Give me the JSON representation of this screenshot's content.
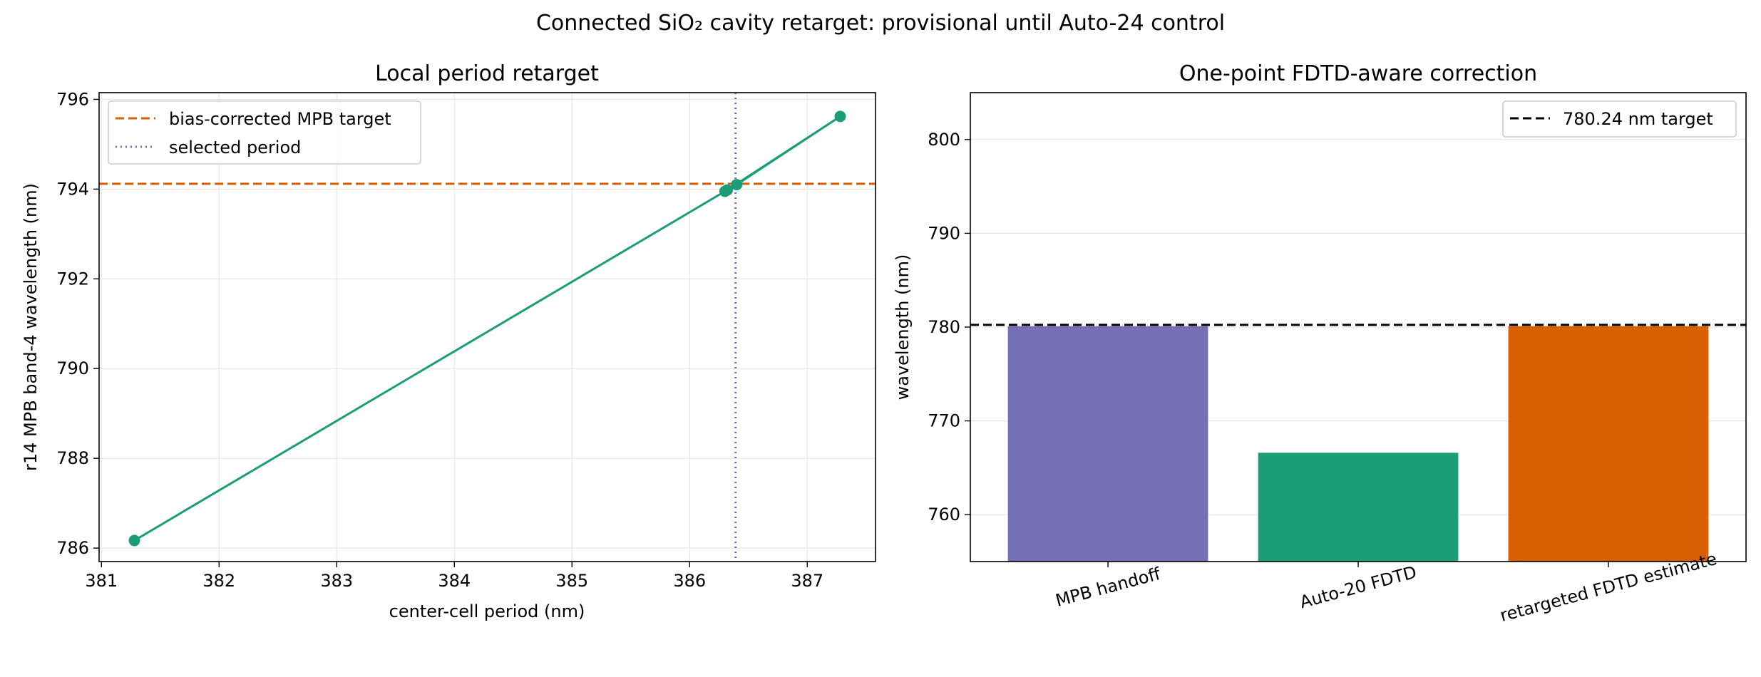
{
  "figure_title": "Connected SiO₂ cavity retarget: provisional until Auto-24 control",
  "colors": {
    "green": "#1b9e77",
    "orange": "#d95f02",
    "purple": "#7570b3",
    "black": "#000000",
    "grid": "#e6e6e6"
  },
  "chart_data": [
    {
      "type": "line",
      "title": "Local period retarget",
      "xlabel": "center-cell period (nm)",
      "ylabel": "r14 MPB band-4 wavelength (nm)",
      "xlim": [
        380.98,
        387.58
      ],
      "ylim": [
        785.7,
        796.15
      ],
      "xticks": [
        381,
        382,
        383,
        384,
        385,
        386,
        387
      ],
      "yticks": [
        786,
        788,
        790,
        792,
        794,
        796
      ],
      "grid": true,
      "legend_position": "upper-left",
      "series": [
        {
          "kind": "line-markers",
          "color": "#1b9e77",
          "x": [
            381.28,
            386.3,
            386.4,
            387.28,
            386.32
          ],
          "y": [
            786.17,
            793.95,
            794.1,
            795.62,
            793.98
          ]
        }
      ],
      "reference_lines": [
        {
          "name": "bias-corrected MPB target",
          "orientation": "horizontal",
          "value": 794.12,
          "style": "dashed",
          "color": "#d95f02"
        },
        {
          "name": "selected period",
          "orientation": "vertical",
          "value": 386.39,
          "style": "dotted",
          "color": "#7570b3"
        }
      ]
    },
    {
      "type": "bar",
      "title": "One-point FDTD-aware correction",
      "xlabel": "",
      "ylabel": "wavelength (nm)",
      "ylim": [
        755,
        805
      ],
      "yticks": [
        760,
        770,
        780,
        790,
        800
      ],
      "grid": true,
      "legend_position": "upper-right",
      "categories": [
        "MPB handoff",
        "Auto-20 FDTD",
        "retargeted FDTD estimate"
      ],
      "values": [
        780.1,
        766.6,
        780.1
      ],
      "bar_colors": [
        "#7570b3",
        "#1b9e77",
        "#d95f02"
      ],
      "reference_lines": [
        {
          "name": "780.24 nm target",
          "orientation": "horizontal",
          "value": 780.24,
          "style": "dashed",
          "color": "#000000"
        }
      ]
    }
  ]
}
